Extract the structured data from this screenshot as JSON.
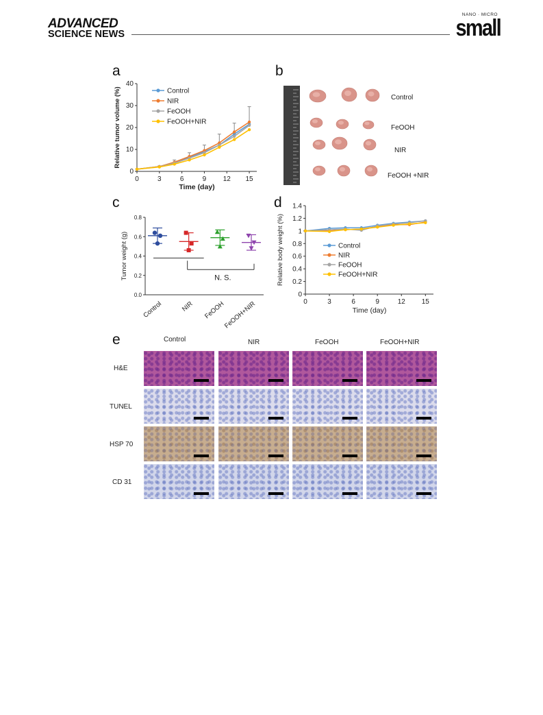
{
  "header": {
    "publisher_line1": "ADVANCED",
    "publisher_line2": "SCIENCE NEWS",
    "journal_top": "NANO · MICRO",
    "journal_name": "small"
  },
  "panels": {
    "a": "a",
    "b": "b",
    "c": "c",
    "d": "d",
    "e": "e"
  },
  "panel_b": {
    "labels": [
      "Control",
      "FeOOH",
      "NIR",
      "FeOOH +NIR"
    ]
  },
  "panel_e": {
    "columns": [
      "Control",
      "NIR",
      "FeOOH",
      "FeOOH+NIR"
    ],
    "rows": [
      "H&E",
      "TUNEL",
      "HSP 70",
      "CD 31"
    ],
    "colors": {
      "he": "#b0589c",
      "tunel": "#dcdcec",
      "hsp70": "#c7ad8f",
      "cd31": "#d2d6ea"
    }
  },
  "chart_data": [
    {
      "type": "line",
      "panel": "a",
      "xlabel": "Time (day)",
      "ylabel": "Relative tumor volume (%)",
      "xlim": [
        0,
        16
      ],
      "ylim": [
        0,
        40
      ],
      "xticks": [
        0,
        3,
        6,
        9,
        12,
        15
      ],
      "yticks": [
        0,
        10,
        20,
        30,
        40
      ],
      "legend_position": "top-left",
      "x": [
        0,
        3,
        5,
        7,
        9,
        11,
        13,
        15
      ],
      "series": [
        {
          "name": "Control",
          "color": "#5b9bd5",
          "values": [
            1,
            2.2,
            4,
            6.5,
            9,
            12,
            17,
            21.5
          ],
          "err": [
            0,
            0.3,
            1.2,
            2,
            3,
            5,
            5,
            8
          ]
        },
        {
          "name": "NIR",
          "color": "#ed7d31",
          "values": [
            1,
            2.2,
            4.2,
            6.8,
            9.5,
            13,
            18,
            22.5
          ],
          "err": [
            0,
            0.3,
            1.2,
            2,
            3,
            5,
            5,
            8
          ]
        },
        {
          "name": "FeOOH",
          "color": "#a5a5a5",
          "values": [
            1,
            2.1,
            3.8,
            6,
            8.5,
            12,
            16,
            21
          ],
          "err": [
            0,
            0.3,
            1,
            2,
            3,
            4,
            5,
            9
          ]
        },
        {
          "name": "FeOOH+NIR",
          "color": "#ffc000",
          "values": [
            1,
            2,
            3.3,
            5.2,
            7.5,
            11,
            14.5,
            19
          ],
          "err": [
            0,
            0.3,
            1,
            1.5,
            2.5,
            4,
            4,
            6
          ]
        }
      ]
    },
    {
      "type": "scatter",
      "panel": "c",
      "ylabel": "Tumor weight (g)",
      "ylim": [
        0,
        0.8
      ],
      "yticks": [
        "0.0",
        "0.2",
        "0.4",
        "0.6",
        "0.8"
      ],
      "categories": [
        "Control",
        "NIR",
        "FeOOH",
        "FeOOH+NIR"
      ],
      "annotation": "N. S.",
      "series": [
        {
          "name": "Control",
          "color": "#2e4d9e",
          "points": [
            0.64,
            0.61,
            0.53
          ],
          "mean": 0.61,
          "sd": 0.08
        },
        {
          "name": "NIR",
          "color": "#d62728",
          "points": [
            0.64,
            0.53,
            0.46
          ],
          "mean": 0.55,
          "sd": 0.09
        },
        {
          "name": "FeOOH",
          "color": "#2ca02c",
          "points": [
            0.65,
            0.58,
            0.5
          ],
          "mean": 0.59,
          "sd": 0.08
        },
        {
          "name": "FeOOH+NIR",
          "color": "#8e44ad",
          "points": [
            0.61,
            0.54,
            0.48
          ],
          "mean": 0.54,
          "sd": 0.08
        }
      ]
    },
    {
      "type": "line",
      "panel": "d",
      "xlabel": "Time (day)",
      "ylabel": "Relative body weight (%)",
      "xlim": [
        0,
        16
      ],
      "ylim": [
        0,
        1.4
      ],
      "xticks": [
        0,
        3,
        6,
        9,
        12,
        15
      ],
      "yticks": [
        "0",
        "0.2",
        "0.4",
        "0.6",
        "0.8",
        "1",
        "1.2",
        "1.4"
      ],
      "legend_position": "bottom-center",
      "x": [
        0,
        3,
        5,
        7,
        9,
        11,
        13,
        15
      ],
      "series": [
        {
          "name": "Control",
          "color": "#5b9bd5",
          "values": [
            1,
            1.04,
            1.05,
            1.05,
            1.09,
            1.12,
            1.14,
            1.16
          ]
        },
        {
          "name": "NIR",
          "color": "#ed7d31",
          "values": [
            1,
            1.0,
            1.02,
            1.03,
            1.07,
            1.1,
            1.1,
            1.14
          ]
        },
        {
          "name": "FeOOH",
          "color": "#a5a5a5",
          "values": [
            1,
            1.02,
            1.03,
            1.01,
            1.08,
            1.11,
            1.13,
            1.16
          ]
        },
        {
          "name": "FeOOH+NIR",
          "color": "#ffc000",
          "values": [
            1,
            0.99,
            1.02,
            1.03,
            1.06,
            1.09,
            1.11,
            1.13
          ]
        }
      ]
    }
  ]
}
